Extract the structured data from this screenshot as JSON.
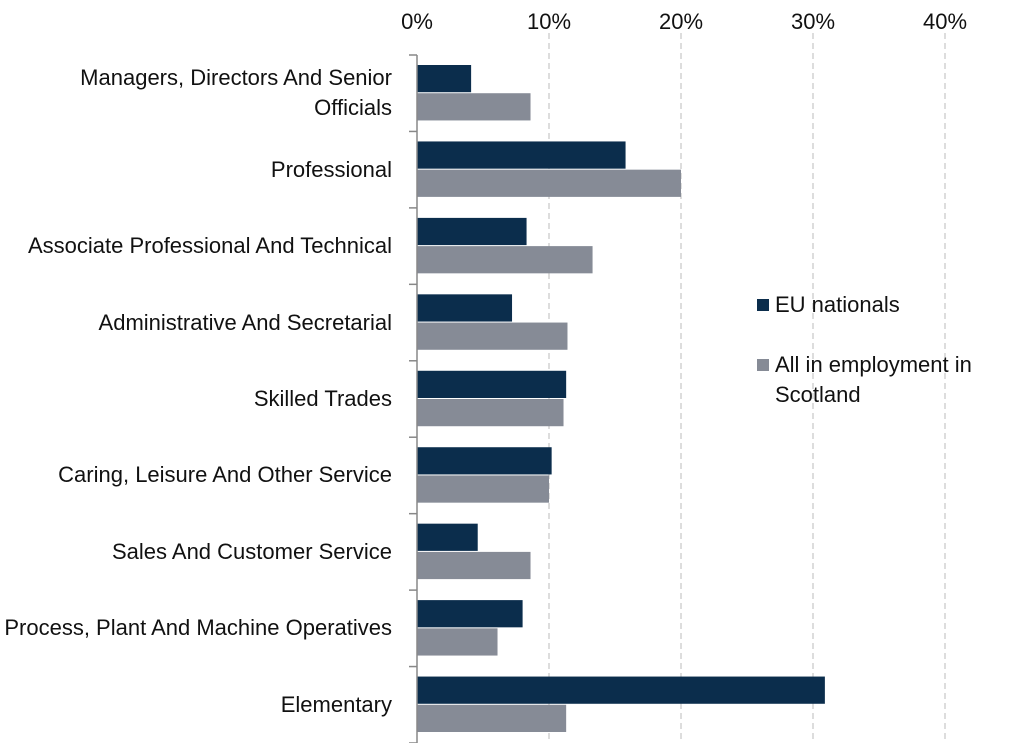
{
  "chart_data": {
    "type": "hbar",
    "categories": [
      "Managers, Directors And Senior Officials",
      "Professional",
      "Associate Professional And Technical",
      "Administrative And Secretarial",
      "Skilled Trades",
      "Caring, Leisure And Other Service",
      "Sales And Customer Service",
      "Process, Plant And Machine Operatives",
      "Elementary"
    ],
    "series": [
      {
        "name": "EU nationals",
        "color": "#0b2d4c",
        "values": [
          4.1,
          15.8,
          8.3,
          7.2,
          11.3,
          10.2,
          4.6,
          8.0,
          30.9
        ]
      },
      {
        "name": "All in employment in Scotland",
        "color": "#868b96",
        "values": [
          8.6,
          20.0,
          13.3,
          11.4,
          11.1,
          10.0,
          8.6,
          6.1,
          11.3
        ]
      }
    ],
    "xlim": [
      0,
      40
    ],
    "xticks": [
      {
        "value": 0,
        "label": "0%"
      },
      {
        "value": 10,
        "label": "10%"
      },
      {
        "value": 20,
        "label": "20%"
      },
      {
        "value": 30,
        "label": "30%"
      },
      {
        "value": 40,
        "label": "40%"
      }
    ],
    "grid": true,
    "legend": "right"
  }
}
